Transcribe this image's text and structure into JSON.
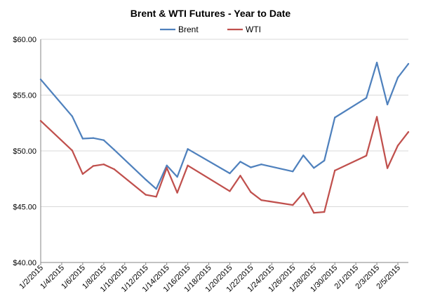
{
  "chart_data": {
    "type": "line",
    "title": "Brent & WTI Futures - Year to Date",
    "legend_position": "top",
    "grid": "horizontal",
    "ylim": [
      40,
      60
    ],
    "yticks": [
      40,
      45,
      50,
      55,
      60
    ],
    "ytick_labels": [
      "$40.00",
      "$45.00",
      "$50.00",
      "$55.00",
      "$60.00"
    ],
    "xlim": [
      "2015-01-02",
      "2015-02-06"
    ],
    "xticks": [
      "2015-01-02",
      "2015-01-04",
      "2015-01-06",
      "2015-01-08",
      "2015-01-10",
      "2015-01-12",
      "2015-01-14",
      "2015-01-16",
      "2015-01-18",
      "2015-01-20",
      "2015-01-22",
      "2015-01-24",
      "2015-01-26",
      "2015-01-28",
      "2015-01-30",
      "2015-02-01",
      "2015-02-03",
      "2015-02-05"
    ],
    "xtick_labels": [
      "1/2/2015",
      "1/4/2015",
      "1/6/2015",
      "1/8/2015",
      "1/10/2015",
      "1/12/2015",
      "1/14/2015",
      "1/16/2015",
      "1/18/2015",
      "1/20/2015",
      "1/22/2015",
      "1/24/2015",
      "1/26/2015",
      "1/28/2015",
      "1/30/2015",
      "2/1/2015",
      "2/3/2015",
      "2/5/2015"
    ],
    "x": [
      "2015-01-02",
      "2015-01-05",
      "2015-01-06",
      "2015-01-07",
      "2015-01-08",
      "2015-01-09",
      "2015-01-12",
      "2015-01-13",
      "2015-01-14",
      "2015-01-15",
      "2015-01-16",
      "2015-01-20",
      "2015-01-21",
      "2015-01-22",
      "2015-01-23",
      "2015-01-26",
      "2015-01-27",
      "2015-01-28",
      "2015-01-29",
      "2015-01-30",
      "2015-02-02",
      "2015-02-03",
      "2015-02-04",
      "2015-02-05",
      "2015-02-06"
    ],
    "series": [
      {
        "name": "Brent",
        "color": "#4f81bd",
        "values": [
          56.4,
          53.1,
          51.1,
          51.15,
          50.96,
          50.1,
          47.43,
          46.59,
          48.69,
          47.67,
          50.17,
          47.99,
          49.03,
          48.52,
          48.79,
          48.16,
          49.6,
          48.47,
          49.13,
          52.99,
          54.75,
          57.91,
          54.16,
          56.57,
          57.8
        ]
      },
      {
        "name": "WTI",
        "color": "#c0504d",
        "values": [
          52.69,
          50.04,
          47.93,
          48.65,
          48.79,
          48.36,
          46.07,
          45.89,
          48.48,
          46.25,
          48.69,
          46.39,
          47.78,
          46.31,
          45.59,
          45.15,
          46.23,
          44.45,
          44.53,
          48.24,
          49.57,
          53.05,
          48.45,
          50.48,
          51.69
        ]
      }
    ]
  }
}
